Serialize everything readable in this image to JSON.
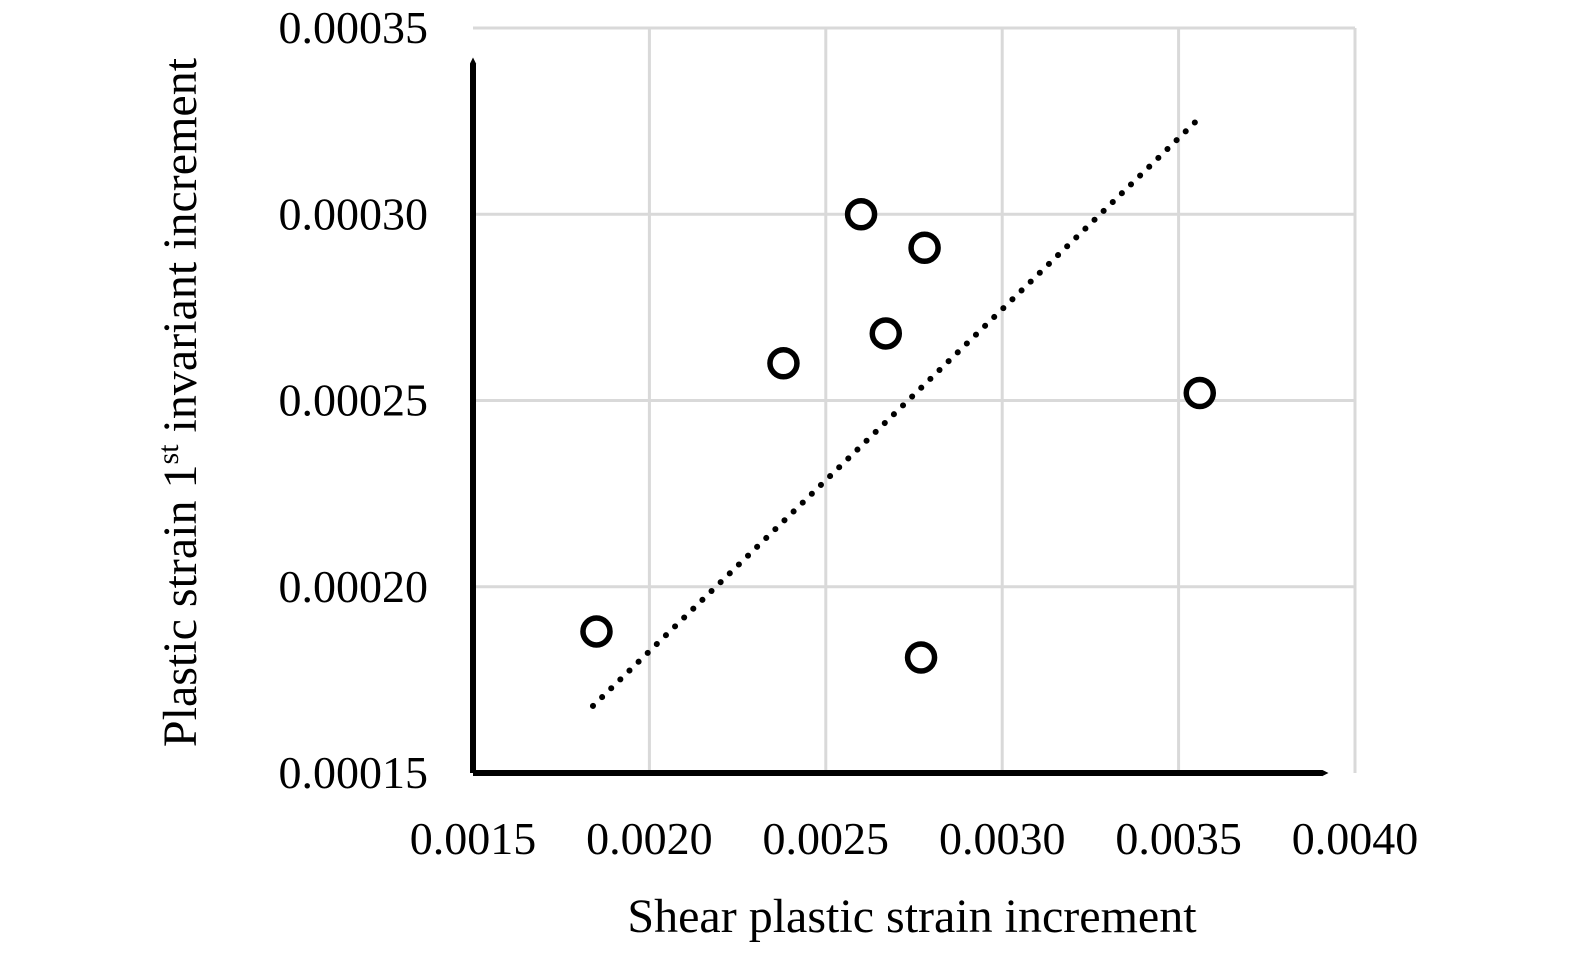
{
  "chart_data": {
    "type": "scatter",
    "xlabel": "Shear plastic strain increment",
    "ylabel": {
      "prefix": "Plastic strain 1",
      "sup": "st",
      "suffix": " invariant increment"
    },
    "xlim": [
      0.0015,
      0.004
    ],
    "ylim": [
      0.00015,
      0.00035
    ],
    "x_ticks": [
      0.0015,
      0.002,
      0.0025,
      0.003,
      0.0035,
      0.004
    ],
    "x_tick_labels": [
      "0.0015",
      "0.0020",
      "0.0025",
      "0.0030",
      "0.0035",
      "0.0040"
    ],
    "y_ticks": [
      0.00015,
      0.0002,
      0.00025,
      0.0003,
      0.00035
    ],
    "y_tick_labels": [
      "0.00015",
      "0.00020",
      "0.00025",
      "0.00030",
      "0.00035"
    ],
    "grid": true,
    "legend": "none",
    "points": [
      {
        "x": 0.00185,
        "y": 0.000188
      },
      {
        "x": 0.00238,
        "y": 0.00026
      },
      {
        "x": 0.0026,
        "y": 0.0003
      },
      {
        "x": 0.00267,
        "y": 0.000268
      },
      {
        "x": 0.00278,
        "y": 0.000291
      },
      {
        "x": 0.00277,
        "y": 0.000181
      },
      {
        "x": 0.00356,
        "y": 0.000252
      }
    ],
    "trendline": {
      "style": "dotted",
      "start": {
        "x": 0.00184,
        "y": 0.000168
      },
      "end": {
        "x": 0.00355,
        "y": 0.000325
      }
    }
  }
}
